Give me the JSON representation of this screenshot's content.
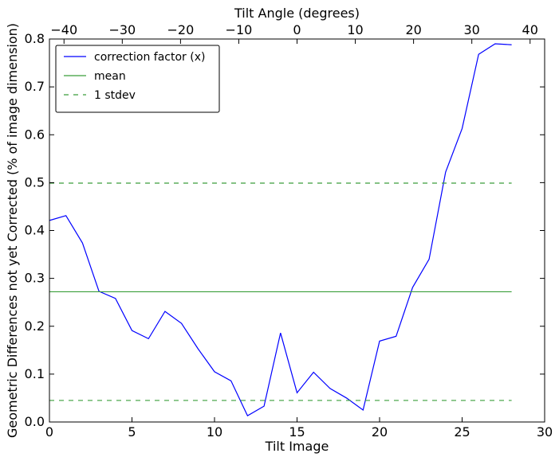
{
  "chart_data": {
    "type": "line",
    "xlabel": "Tilt Image",
    "ylabel": "Geometric Differences not yet Corrected (% of image dimension)",
    "top_xlabel": "Tilt Angle (degrees)",
    "xlim": [
      0,
      30
    ],
    "ylim": [
      0,
      0.8
    ],
    "top_xlim": [
      -42.5,
      42.5
    ],
    "x_ticks": [
      0,
      5,
      10,
      15,
      20,
      25,
      30
    ],
    "y_ticks": [
      0.0,
      0.1,
      0.2,
      0.3,
      0.4,
      0.5,
      0.6,
      0.7,
      0.8
    ],
    "top_ticks": [
      -40,
      -30,
      -20,
      -10,
      0,
      10,
      20,
      30,
      40
    ],
    "x_tick_labels": [
      "0",
      "5",
      "10",
      "15",
      "20",
      "25",
      "30"
    ],
    "y_tick_labels": [
      "0.0",
      "0.1",
      "0.2",
      "0.3",
      "0.4",
      "0.5",
      "0.6",
      "0.7",
      "0.8"
    ],
    "top_tick_labels": [
      "−40",
      "−30",
      "−20",
      "−10",
      "0",
      "10",
      "20",
      "30",
      "40"
    ],
    "grid": false,
    "legend_position": "top-left",
    "series": [
      {
        "name": "correction factor (x)",
        "color": "#0000ff",
        "style": "solid",
        "x": [
          0,
          1,
          2,
          3,
          4,
          5,
          6,
          7,
          8,
          9,
          10,
          11,
          12,
          13,
          14,
          15,
          16,
          17,
          18,
          19,
          20,
          21,
          22,
          23,
          24,
          25,
          26,
          27,
          28
        ],
        "y": [
          0.421,
          0.431,
          0.374,
          0.273,
          0.258,
          0.191,
          0.174,
          0.231,
          0.206,
          0.153,
          0.105,
          0.086,
          0.013,
          0.033,
          0.186,
          0.061,
          0.104,
          0.07,
          0.05,
          0.025,
          0.169,
          0.179,
          0.281,
          0.34,
          0.522,
          0.613,
          0.768,
          0.79,
          0.788
        ]
      },
      {
        "name": "mean",
        "color": "#3a9e3a",
        "style": "solid",
        "x": [
          0,
          28
        ],
        "y": [
          0.272,
          0.272
        ]
      },
      {
        "name": "1 stdev",
        "color": "#3a9e3a",
        "style": "dashed",
        "x": [
          0,
          28
        ],
        "y": [
          0.499,
          0.499
        ]
      },
      {
        "name": "",
        "color": "#3a9e3a",
        "style": "dashed",
        "x": [
          0,
          28
        ],
        "y": [
          0.045,
          0.045
        ]
      }
    ]
  }
}
